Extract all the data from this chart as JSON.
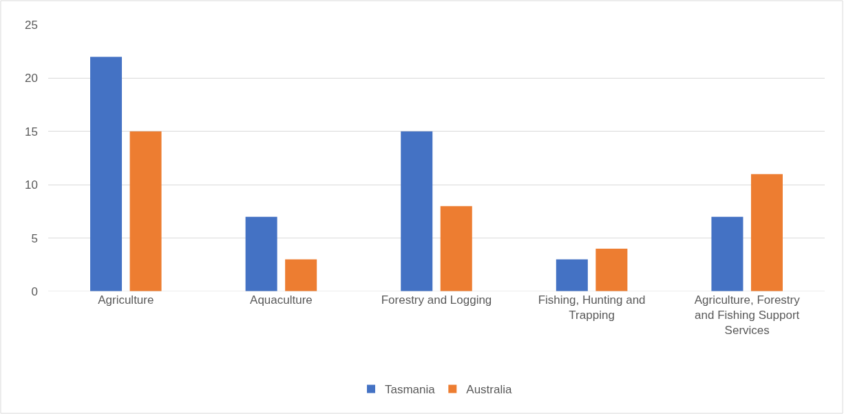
{
  "chart_data": {
    "type": "bar",
    "categories": [
      "Agriculture",
      "Aquaculture",
      "Forestry and Logging",
      "Fishing, Hunting and Trapping",
      "Agriculture, Forestry and Fishing Support Services"
    ],
    "series": [
      {
        "name": "Tasmania",
        "color": "#4472c4",
        "values": [
          22,
          7,
          15,
          3,
          7
        ]
      },
      {
        "name": "Australia",
        "color": "#ed7d31",
        "values": [
          15,
          3,
          8,
          4,
          11
        ]
      }
    ],
    "ylim": [
      0,
      25
    ],
    "yticks": [
      0,
      5,
      10,
      15,
      20,
      25
    ],
    "grid": "y",
    "legend": "bottom"
  }
}
